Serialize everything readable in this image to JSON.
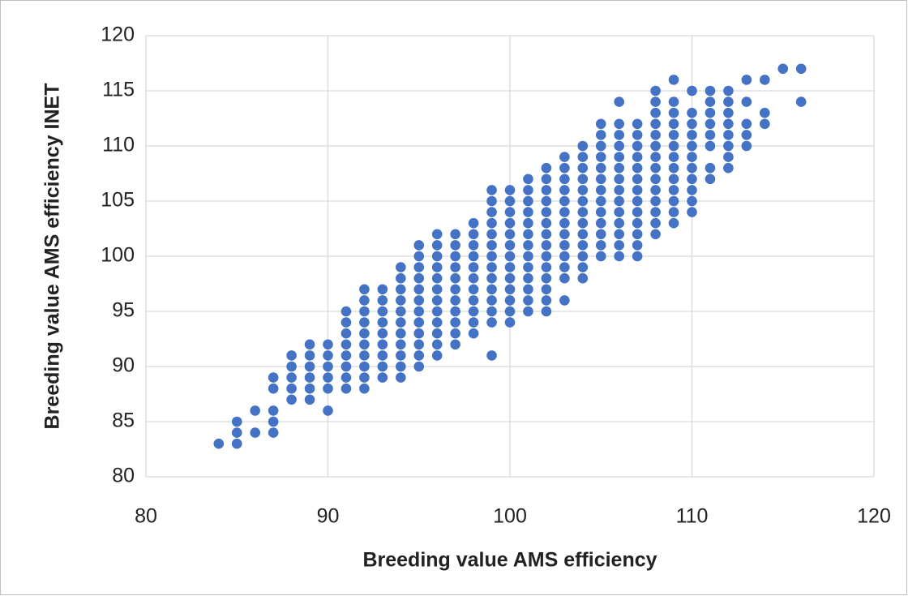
{
  "chart_data": {
    "type": "scatter",
    "x_label": "Breeding value AMS efficiency",
    "y_label": "Breeding value AMS efficiency INET",
    "color": "#4472c4",
    "xlim": [
      80,
      120
    ],
    "xticks": [
      80,
      90,
      100,
      110,
      120
    ],
    "ylim": [
      80,
      120
    ],
    "yticks": [
      80,
      85,
      90,
      95,
      100,
      105,
      110,
      115,
      120
    ],
    "grid": true,
    "x": [
      84,
      85,
      85,
      85,
      86,
      86,
      87,
      87,
      87,
      87,
      87,
      88,
      88,
      88,
      88,
      88,
      89,
      89,
      89,
      89,
      89,
      89,
      90,
      90,
      90,
      90,
      90,
      90,
      91,
      91,
      91,
      91,
      91,
      91,
      91,
      91,
      92,
      92,
      92,
      92,
      92,
      92,
      92,
      92,
      92,
      92,
      93,
      93,
      93,
      93,
      93,
      93,
      93,
      93,
      93,
      94,
      94,
      94,
      94,
      94,
      94,
      94,
      94,
      94,
      94,
      94,
      95,
      95,
      95,
      95,
      95,
      95,
      95,
      95,
      95,
      95,
      95,
      95,
      96,
      96,
      96,
      96,
      96,
      96,
      96,
      96,
      96,
      96,
      96,
      96,
      97,
      97,
      97,
      97,
      97,
      97,
      97,
      97,
      97,
      97,
      97,
      98,
      98,
      98,
      98,
      98,
      98,
      98,
      98,
      98,
      98,
      98,
      99,
      99,
      99,
      99,
      99,
      99,
      99,
      99,
      99,
      99,
      99,
      99,
      99,
      99,
      100,
      100,
      100,
      100,
      100,
      100,
      100,
      100,
      100,
      100,
      100,
      100,
      100,
      101,
      101,
      101,
      101,
      101,
      101,
      101,
      101,
      101,
      101,
      101,
      101,
      101,
      102,
      102,
      102,
      102,
      102,
      102,
      102,
      102,
      102,
      102,
      102,
      102,
      102,
      102,
      103,
      103,
      103,
      103,
      103,
      103,
      103,
      103,
      103,
      103,
      103,
      103,
      103,
      104,
      104,
      104,
      104,
      104,
      104,
      104,
      104,
      104,
      104,
      104,
      104,
      104,
      105,
      105,
      105,
      105,
      105,
      105,
      105,
      105,
      105,
      105,
      105,
      105,
      105,
      106,
      106,
      106,
      106,
      106,
      106,
      106,
      106,
      106,
      106,
      106,
      106,
      106,
      106,
      107,
      107,
      107,
      107,
      107,
      107,
      107,
      107,
      107,
      107,
      107,
      107,
      107,
      108,
      108,
      108,
      108,
      108,
      108,
      108,
      108,
      108,
      108,
      108,
      108,
      108,
      108,
      109,
      109,
      109,
      109,
      109,
      109,
      109,
      109,
      109,
      109,
      109,
      109,
      109,
      110,
      110,
      110,
      110,
      110,
      110,
      110,
      110,
      110,
      110,
      110,
      111,
      111,
      111,
      111,
      111,
      111,
      111,
      111,
      112,
      112,
      112,
      112,
      112,
      112,
      112,
      112,
      113,
      113,
      113,
      113,
      113,
      114,
      114,
      114,
      115,
      116,
      116
    ],
    "y": [
      83,
      83,
      84,
      85,
      84,
      86,
      84,
      85,
      86,
      88,
      89,
      87,
      88,
      89,
      90,
      91,
      87,
      88,
      89,
      90,
      91,
      92,
      86,
      88,
      89,
      90,
      91,
      92,
      88,
      89,
      90,
      91,
      92,
      93,
      94,
      95,
      88,
      89,
      90,
      91,
      92,
      93,
      94,
      95,
      96,
      97,
      89,
      90,
      91,
      92,
      93,
      94,
      95,
      96,
      97,
      89,
      90,
      91,
      92,
      93,
      94,
      95,
      96,
      97,
      98,
      99,
      90,
      91,
      92,
      93,
      94,
      95,
      96,
      97,
      98,
      99,
      100,
      101,
      91,
      92,
      93,
      94,
      95,
      96,
      97,
      98,
      99,
      100,
      101,
      102,
      92,
      93,
      94,
      95,
      96,
      97,
      98,
      99,
      100,
      101,
      102,
      93,
      94,
      95,
      96,
      97,
      98,
      99,
      100,
      101,
      102,
      103,
      91,
      94,
      95,
      96,
      97,
      98,
      99,
      100,
      101,
      102,
      103,
      104,
      105,
      106,
      94,
      95,
      96,
      97,
      98,
      99,
      100,
      101,
      102,
      103,
      104,
      105,
      106,
      95,
      96,
      97,
      98,
      99,
      100,
      101,
      102,
      103,
      104,
      105,
      106,
      107,
      95,
      96,
      97,
      98,
      99,
      100,
      101,
      102,
      103,
      104,
      105,
      106,
      107,
      108,
      96,
      98,
      99,
      100,
      101,
      102,
      103,
      104,
      105,
      106,
      107,
      108,
      109,
      98,
      99,
      100,
      101,
      102,
      103,
      104,
      105,
      106,
      107,
      108,
      109,
      110,
      100,
      101,
      102,
      103,
      104,
      105,
      106,
      107,
      108,
      109,
      110,
      111,
      112,
      100,
      101,
      102,
      103,
      104,
      105,
      106,
      107,
      108,
      109,
      110,
      111,
      112,
      114,
      100,
      101,
      102,
      103,
      104,
      105,
      106,
      107,
      108,
      109,
      110,
      111,
      112,
      102,
      103,
      104,
      105,
      106,
      107,
      108,
      109,
      110,
      111,
      112,
      113,
      114,
      115,
      103,
      104,
      105,
      106,
      107,
      108,
      109,
      110,
      111,
      112,
      113,
      114,
      116,
      104,
      105,
      106,
      107,
      108,
      109,
      110,
      111,
      112,
      113,
      115,
      107,
      108,
      110,
      111,
      112,
      113,
      114,
      115,
      108,
      109,
      110,
      111,
      112,
      113,
      114,
      115,
      110,
      111,
      112,
      114,
      116,
      112,
      113,
      116,
      117,
      114,
      117
    ]
  }
}
